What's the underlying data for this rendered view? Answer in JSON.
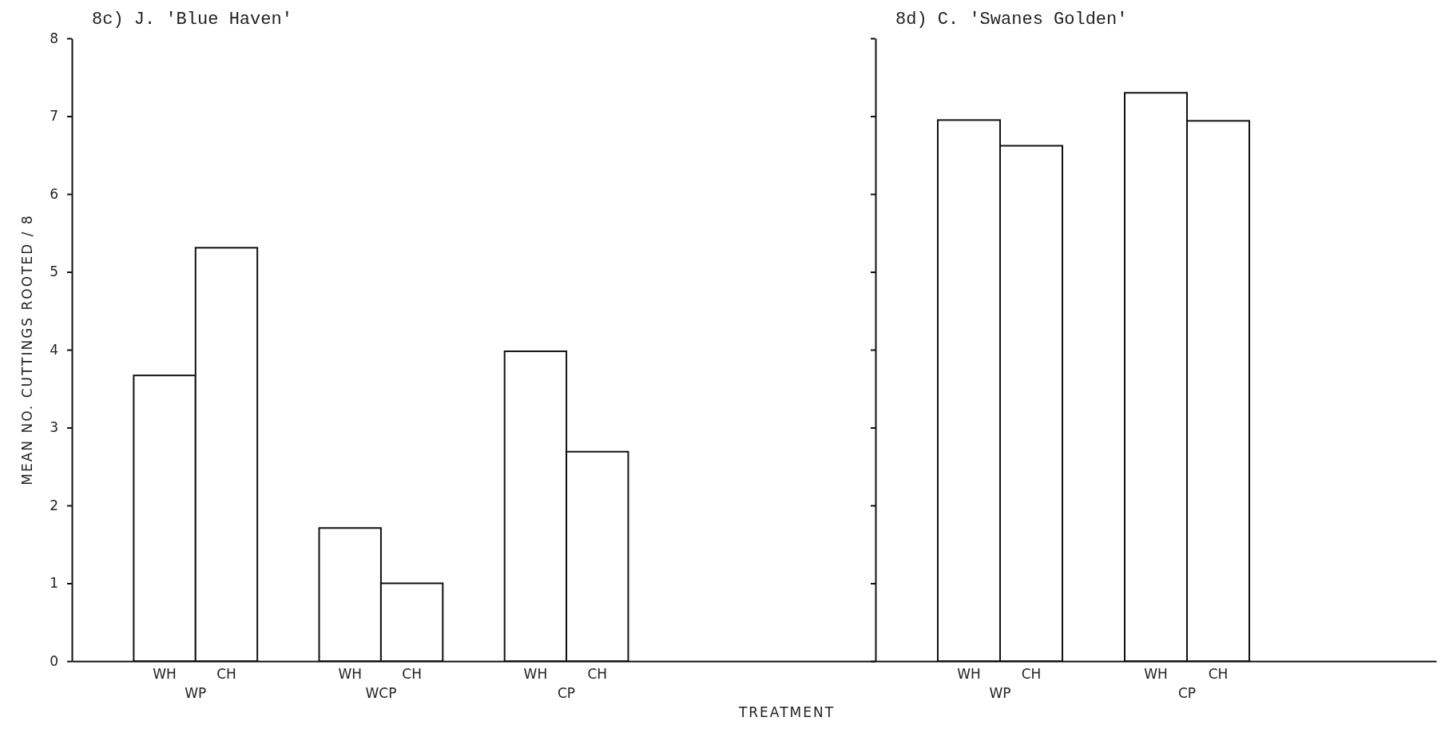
{
  "chart_data": [
    {
      "type": "bar",
      "title": "8c) J. 'Blue Haven'",
      "ylabel": "MEAN NO. CUTTINGS ROOTED / 8",
      "xlabel": "TREATMENT",
      "categories": [
        null,
        "WH",
        "CH",
        null,
        "WH",
        "CH",
        null,
        "WH",
        "CH",
        null,
        null,
        null,
        null
      ],
      "values": [
        null,
        3.67,
        5.31,
        null,
        1.71,
        1.0,
        null,
        3.98,
        2.69,
        null,
        null,
        null,
        null
      ],
      "color": "#ffffff",
      "annotations": [
        "WP",
        "WCP",
        "CP"
      ],
      "ylim": [
        0,
        8
      ],
      "yticks": [
        0,
        1,
        2,
        3,
        4,
        5,
        6,
        7,
        8
      ],
      "grid": false,
      "legend": false
    },
    {
      "type": "bar",
      "title": "8d) C. 'Swanes Golden'",
      "categories": [
        null,
        "WH",
        "CH",
        null,
        "WH",
        "CH",
        null,
        null,
        null
      ],
      "values": [
        null,
        6.95,
        6.62,
        null,
        7.3,
        6.94,
        null,
        null,
        null
      ],
      "color": "#ffffff",
      "annotations": [
        "WP",
        "CP"
      ],
      "ylim": [
        0,
        8
      ],
      "yticks": [
        0,
        1,
        2,
        3,
        4,
        5,
        6,
        7,
        8
      ],
      "tick_labels": "x",
      "grid": false,
      "legend": false
    }
  ]
}
